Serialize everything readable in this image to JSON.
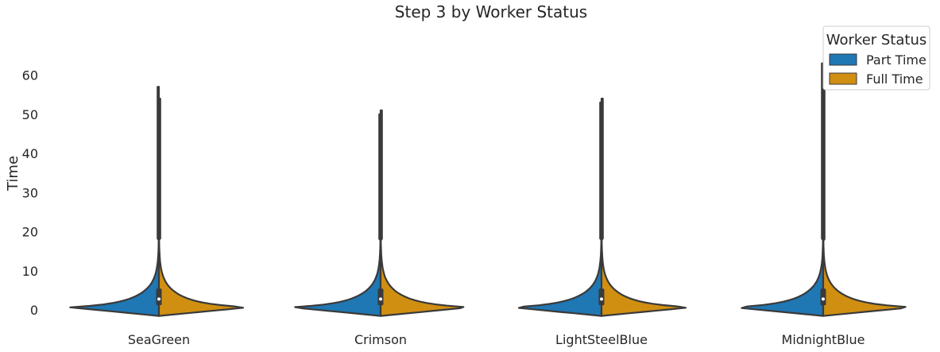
{
  "chart_data": {
    "type": "violin",
    "title": "Step 3 by Worker Status",
    "xlabel": "",
    "ylabel": "Time",
    "ylim": [
      -3,
      67
    ],
    "yticks": [
      0,
      10,
      20,
      30,
      40,
      50,
      60
    ],
    "categories": [
      "SeaGreen",
      "Crimson",
      "LightSteelBlue",
      "MidnightBlue"
    ],
    "split": true,
    "grid": false,
    "legend": {
      "title": "Worker Status",
      "position": "top-right",
      "entries": [
        {
          "name": "Part Time",
          "color": "#1f77b4"
        },
        {
          "name": "Full Time",
          "color": "#d18f12"
        }
      ]
    },
    "series": [
      {
        "name": "Part Time",
        "color": "#1f77b4",
        "max": [
          57,
          50,
          53,
          63
        ],
        "median": [
          2.8,
          2.8,
          2.8,
          2.8
        ],
        "q1": [
          1.2,
          1.2,
          1.2,
          1.2
        ],
        "q3": [
          5.5,
          5.5,
          5.5,
          5.5
        ]
      },
      {
        "name": "Full Time",
        "color": "#d18f12",
        "max": [
          54,
          51,
          54,
          60
        ],
        "median": [
          2.8,
          2.8,
          2.8,
          2.8
        ],
        "q1": [
          1.2,
          1.2,
          1.2,
          1.2
        ],
        "q3": [
          5.5,
          5.5,
          5.5,
          5.5
        ]
      }
    ]
  }
}
